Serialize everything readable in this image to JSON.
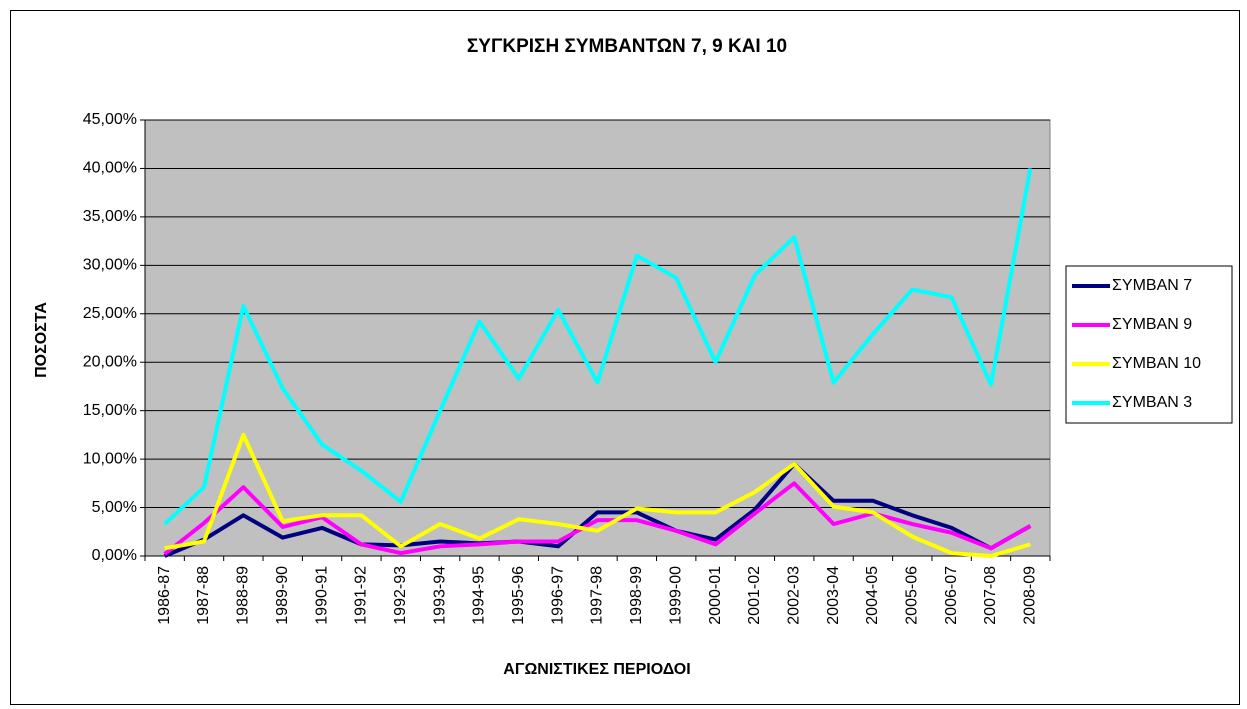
{
  "chart_data": {
    "type": "line",
    "title": "ΣΥΓΚΡΙΣΗ ΣΥΜΒΑΝΤΩΝ 7, 9 ΚΑΙ 10",
    "x_label": "ΑΓΩΝΙΣΤΙΚΕΣ ΠΕΡΙΟΔΟΙ",
    "y_label": "ΠΟΣΟΣΤΑ",
    "categories": [
      "1986-87",
      "1987-88",
      "1988-89",
      "1989-90",
      "1990-91",
      "1991-92",
      "1992-93",
      "1993-94",
      "1994-95",
      "1995-96",
      "1996-97",
      "1997-98",
      "1998-99",
      "1999-00",
      "2000-01",
      "2001-02",
      "2002-03",
      "2003-04",
      "2004-05",
      "2005-06",
      "2006-07",
      "2007-08",
      "2008-09"
    ],
    "series": [
      {
        "name": "ΣΥΜΒΑΝ 7",
        "color": "#000080",
        "values": [
          0,
          1.7,
          4.2,
          1.9,
          2.9,
          1.2,
          1.1,
          1.5,
          1.3,
          1.5,
          1.0,
          4.5,
          4.5,
          2.6,
          1.7,
          4.8,
          9.5,
          5.7,
          5.7,
          4.2,
          2.9,
          0.8,
          3.1
        ]
      },
      {
        "name": "ΣΥΜΒΑΝ 9",
        "color": "#ff00ff",
        "values": [
          0.2,
          3.4,
          7.1,
          3.0,
          4.0,
          1.2,
          0.3,
          1.0,
          1.2,
          1.5,
          1.5,
          3.7,
          3.7,
          2.6,
          1.2,
          4.4,
          7.5,
          3.3,
          4.4,
          3.3,
          2.4,
          0.8,
          3.1
        ]
      },
      {
        "name": "ΣΥΜΒΑΝ 10",
        "color": "#ffff00",
        "values": [
          0.8,
          1.5,
          12.5,
          3.6,
          4.2,
          4.2,
          1.0,
          3.3,
          1.8,
          3.8,
          3.3,
          2.6,
          4.9,
          4.5,
          4.5,
          6.6,
          9.5,
          5.1,
          4.5,
          2.0,
          0.3,
          0,
          1.2
        ]
      },
      {
        "name": "ΣΥΜΒΑΝ 3",
        "color": "#00ffff",
        "values": [
          3.3,
          7.1,
          25.8,
          17.3,
          11.5,
          8.8,
          5.6,
          15.0,
          24.2,
          18.3,
          25.4,
          17.9,
          31.0,
          28.7,
          20.0,
          29.0,
          32.9,
          17.9,
          22.9,
          27.5,
          26.7,
          17.7,
          40.0
        ]
      }
    ],
    "ylim": [
      0,
      45
    ],
    "yticks": [
      {
        "value": 0,
        "label": "0,00%"
      },
      {
        "value": 5,
        "label": "5,00%"
      },
      {
        "value": 10,
        "label": "10,00%"
      },
      {
        "value": 15,
        "label": "15,00%"
      },
      {
        "value": 20,
        "label": "20,00%"
      },
      {
        "value": 25,
        "label": "25,00%"
      },
      {
        "value": 30,
        "label": "30,00%"
      },
      {
        "value": 35,
        "label": "35,00%"
      },
      {
        "value": 40,
        "label": "40,00%"
      },
      {
        "value": 45,
        "label": "45,00%"
      }
    ],
    "grid": true,
    "plot_background": "#c0c0c0",
    "legend": "right"
  }
}
